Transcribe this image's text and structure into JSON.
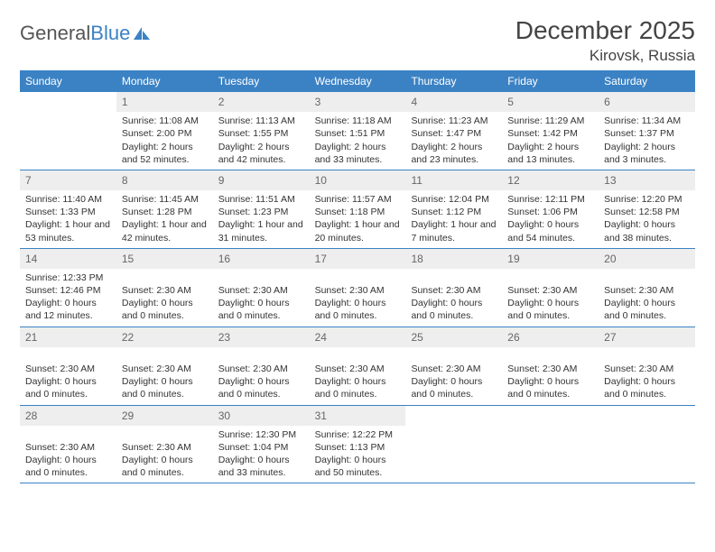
{
  "logo": {
    "text1": "General",
    "text2": "Blue"
  },
  "title": "December 2025",
  "location": "Kirovsk, Russia",
  "colors": {
    "header_bg": "#3b82c4",
    "date_bg": "#eeeeee",
    "page_bg": "#ffffff",
    "text": "#333333"
  },
  "day_headers": [
    "Sunday",
    "Monday",
    "Tuesday",
    "Wednesday",
    "Thursday",
    "Friday",
    "Saturday"
  ],
  "weeks": [
    [
      {
        "n": "",
        "l1": "",
        "l2": "",
        "l3": "",
        "l4": ""
      },
      {
        "n": "1",
        "l1": "Sunrise: 11:08 AM",
        "l2": "Sunset: 2:00 PM",
        "l3": "Daylight: 2 hours",
        "l4": "and 52 minutes."
      },
      {
        "n": "2",
        "l1": "Sunrise: 11:13 AM",
        "l2": "Sunset: 1:55 PM",
        "l3": "Daylight: 2 hours",
        "l4": "and 42 minutes."
      },
      {
        "n": "3",
        "l1": "Sunrise: 11:18 AM",
        "l2": "Sunset: 1:51 PM",
        "l3": "Daylight: 2 hours",
        "l4": "and 33 minutes."
      },
      {
        "n": "4",
        "l1": "Sunrise: 11:23 AM",
        "l2": "Sunset: 1:47 PM",
        "l3": "Daylight: 2 hours",
        "l4": "and 23 minutes."
      },
      {
        "n": "5",
        "l1": "Sunrise: 11:29 AM",
        "l2": "Sunset: 1:42 PM",
        "l3": "Daylight: 2 hours",
        "l4": "and 13 minutes."
      },
      {
        "n": "6",
        "l1": "Sunrise: 11:34 AM",
        "l2": "Sunset: 1:37 PM",
        "l3": "Daylight: 2 hours",
        "l4": "and 3 minutes."
      }
    ],
    [
      {
        "n": "7",
        "l1": "Sunrise: 11:40 AM",
        "l2": "Sunset: 1:33 PM",
        "l3": "Daylight: 1 hour and",
        "l4": "53 minutes."
      },
      {
        "n": "8",
        "l1": "Sunrise: 11:45 AM",
        "l2": "Sunset: 1:28 PM",
        "l3": "Daylight: 1 hour and",
        "l4": "42 minutes."
      },
      {
        "n": "9",
        "l1": "Sunrise: 11:51 AM",
        "l2": "Sunset: 1:23 PM",
        "l3": "Daylight: 1 hour and",
        "l4": "31 minutes."
      },
      {
        "n": "10",
        "l1": "Sunrise: 11:57 AM",
        "l2": "Sunset: 1:18 PM",
        "l3": "Daylight: 1 hour and",
        "l4": "20 minutes."
      },
      {
        "n": "11",
        "l1": "Sunrise: 12:04 PM",
        "l2": "Sunset: 1:12 PM",
        "l3": "Daylight: 1 hour and",
        "l4": "7 minutes."
      },
      {
        "n": "12",
        "l1": "Sunrise: 12:11 PM",
        "l2": "Sunset: 1:06 PM",
        "l3": "Daylight: 0 hours",
        "l4": "and 54 minutes."
      },
      {
        "n": "13",
        "l1": "Sunrise: 12:20 PM",
        "l2": "Sunset: 12:58 PM",
        "l3": "Daylight: 0 hours",
        "l4": "and 38 minutes."
      }
    ],
    [
      {
        "n": "14",
        "l1": "Sunrise: 12:33 PM",
        "l2": "Sunset: 12:46 PM",
        "l3": "Daylight: 0 hours",
        "l4": "and 12 minutes."
      },
      {
        "n": "15",
        "l1": "",
        "l2": "Sunset: 2:30 AM",
        "l3": "Daylight: 0 hours",
        "l4": "and 0 minutes."
      },
      {
        "n": "16",
        "l1": "",
        "l2": "Sunset: 2:30 AM",
        "l3": "Daylight: 0 hours",
        "l4": "and 0 minutes."
      },
      {
        "n": "17",
        "l1": "",
        "l2": "Sunset: 2:30 AM",
        "l3": "Daylight: 0 hours",
        "l4": "and 0 minutes."
      },
      {
        "n": "18",
        "l1": "",
        "l2": "Sunset: 2:30 AM",
        "l3": "Daylight: 0 hours",
        "l4": "and 0 minutes."
      },
      {
        "n": "19",
        "l1": "",
        "l2": "Sunset: 2:30 AM",
        "l3": "Daylight: 0 hours",
        "l4": "and 0 minutes."
      },
      {
        "n": "20",
        "l1": "",
        "l2": "Sunset: 2:30 AM",
        "l3": "Daylight: 0 hours",
        "l4": "and 0 minutes."
      }
    ],
    [
      {
        "n": "21",
        "l1": "",
        "l2": "Sunset: 2:30 AM",
        "l3": "Daylight: 0 hours",
        "l4": "and 0 minutes."
      },
      {
        "n": "22",
        "l1": "",
        "l2": "Sunset: 2:30 AM",
        "l3": "Daylight: 0 hours",
        "l4": "and 0 minutes."
      },
      {
        "n": "23",
        "l1": "",
        "l2": "Sunset: 2:30 AM",
        "l3": "Daylight: 0 hours",
        "l4": "and 0 minutes."
      },
      {
        "n": "24",
        "l1": "",
        "l2": "Sunset: 2:30 AM",
        "l3": "Daylight: 0 hours",
        "l4": "and 0 minutes."
      },
      {
        "n": "25",
        "l1": "",
        "l2": "Sunset: 2:30 AM",
        "l3": "Daylight: 0 hours",
        "l4": "and 0 minutes."
      },
      {
        "n": "26",
        "l1": "",
        "l2": "Sunset: 2:30 AM",
        "l3": "Daylight: 0 hours",
        "l4": "and 0 minutes."
      },
      {
        "n": "27",
        "l1": "",
        "l2": "Sunset: 2:30 AM",
        "l3": "Daylight: 0 hours",
        "l4": "and 0 minutes."
      }
    ],
    [
      {
        "n": "28",
        "l1": "",
        "l2": "Sunset: 2:30 AM",
        "l3": "Daylight: 0 hours",
        "l4": "and 0 minutes."
      },
      {
        "n": "29",
        "l1": "",
        "l2": "Sunset: 2:30 AM",
        "l3": "Daylight: 0 hours",
        "l4": "and 0 minutes."
      },
      {
        "n": "30",
        "l1": "Sunrise: 12:30 PM",
        "l2": "Sunset: 1:04 PM",
        "l3": "Daylight: 0 hours",
        "l4": "and 33 minutes."
      },
      {
        "n": "31",
        "l1": "Sunrise: 12:22 PM",
        "l2": "Sunset: 1:13 PM",
        "l3": "Daylight: 0 hours",
        "l4": "and 50 minutes."
      },
      {
        "n": "",
        "l1": "",
        "l2": "",
        "l3": "",
        "l4": ""
      },
      {
        "n": "",
        "l1": "",
        "l2": "",
        "l3": "",
        "l4": ""
      },
      {
        "n": "",
        "l1": "",
        "l2": "",
        "l3": "",
        "l4": ""
      }
    ]
  ]
}
